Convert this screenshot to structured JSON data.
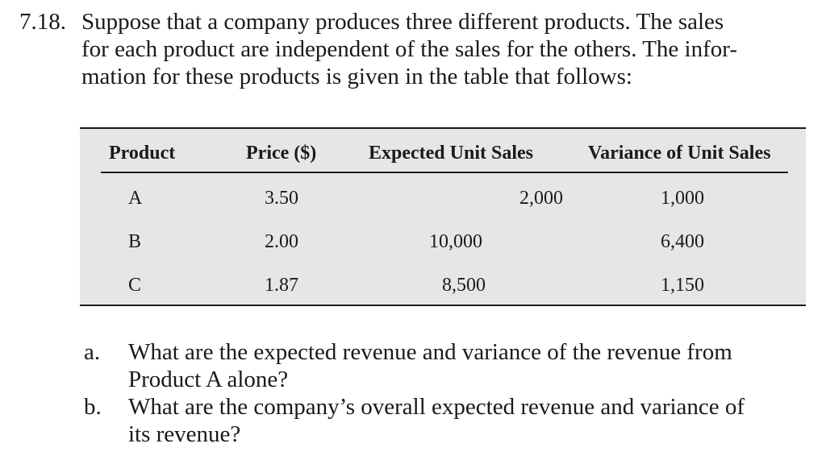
{
  "problem": {
    "number": "7.18.",
    "lines": [
      "Suppose that a company produces three different products. The sales",
      "for each product are independent of the sales for the others. The infor-",
      "mation for these products is given in the table that follows:"
    ]
  },
  "table": {
    "headers": [
      "Product",
      "Price ($)",
      "Expected Unit Sales",
      "Variance of Unit Sales"
    ],
    "rows": [
      [
        "A",
        "3.50",
        "2,000",
        "1,000"
      ],
      [
        "B",
        "2.00",
        "10,000",
        "6,400"
      ],
      [
        "C",
        "1.87",
        "8,500",
        "1,150"
      ]
    ]
  },
  "questions": [
    {
      "letter": "a.",
      "lines": [
        "What are the expected revenue and variance of the revenue from",
        "Product A alone?"
      ]
    },
    {
      "letter": "b.",
      "lines": [
        "What are the company’s overall expected revenue and variance of",
        "its revenue?"
      ]
    }
  ]
}
